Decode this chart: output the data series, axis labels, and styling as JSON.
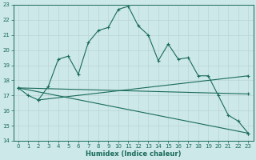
{
  "xlabel": "Humidex (Indice chaleur)",
  "background_color": "#cce8e8",
  "grid_color": "#b8d4d4",
  "line_color": "#1a6b5a",
  "xlim": [
    -0.5,
    23.5
  ],
  "ylim": [
    14,
    23
  ],
  "x_ticks": [
    0,
    1,
    2,
    3,
    4,
    5,
    6,
    7,
    8,
    9,
    10,
    11,
    12,
    13,
    14,
    15,
    16,
    17,
    18,
    19,
    20,
    21,
    22,
    23
  ],
  "y_ticks": [
    14,
    15,
    16,
    17,
    18,
    19,
    20,
    21,
    22,
    23
  ],
  "curve1_x": [
    0,
    1,
    2,
    3,
    4,
    5,
    6,
    7,
    8,
    9,
    10,
    11,
    12,
    13,
    14,
    15,
    16,
    17,
    18,
    19,
    20,
    21,
    22,
    23
  ],
  "curve1_y": [
    17.5,
    17.0,
    16.7,
    17.6,
    19.4,
    19.6,
    18.4,
    20.5,
    21.3,
    21.5,
    22.7,
    22.9,
    21.6,
    21.0,
    19.3,
    20.4,
    19.4,
    19.5,
    18.3,
    18.3,
    17.0,
    15.7,
    15.3,
    14.5
  ],
  "curve2_x": [
    0,
    23
  ],
  "curve2_y": [
    17.5,
    17.1
  ],
  "curve3_x": [
    2,
    23
  ],
  "curve3_y": [
    16.7,
    18.3
  ],
  "curve4_x": [
    0,
    23
  ],
  "curve4_y": [
    17.5,
    14.5
  ]
}
